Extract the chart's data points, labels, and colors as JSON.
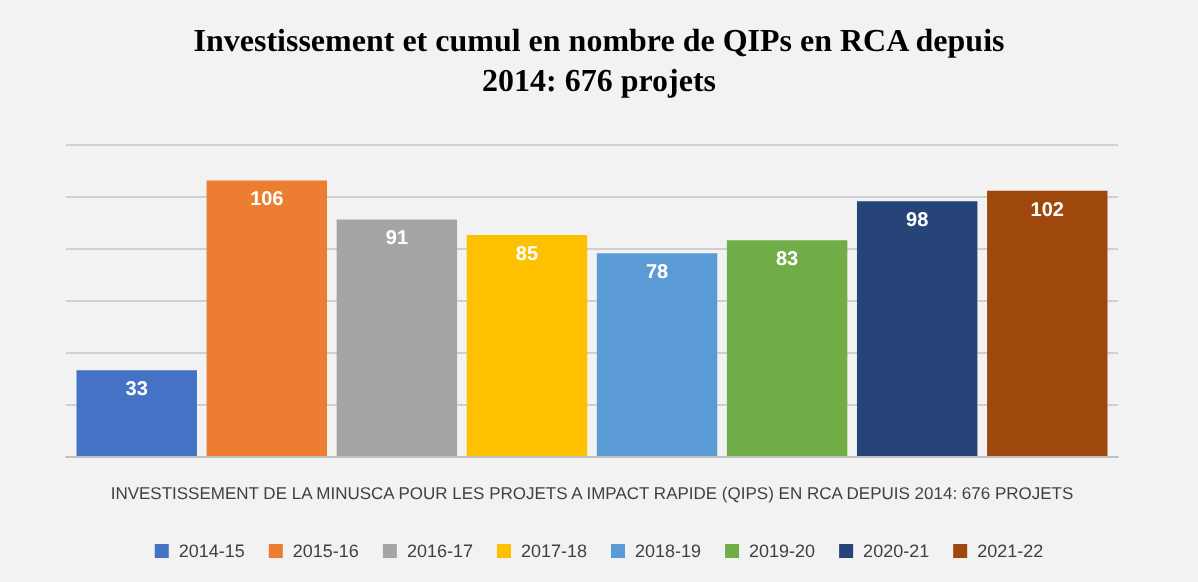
{
  "chart_data": {
    "type": "bar",
    "title": "Investissement et cumul en nombre de QIPs en RCA depuis\n2014: 676 projets",
    "xlabel": "INVESTISSEMENT DE LA MINUSCA POUR LES PROJETS A IMPACT RAPIDE (QIPS) EN RCA DEPUIS 2014: 676 PROJETS",
    "categories": [
      null
    ],
    "series": [
      {
        "name": "2014-15",
        "color": "#4472c4",
        "values": [
          33
        ]
      },
      {
        "name": "2015-16",
        "color": "#ed7d31",
        "values": [
          106
        ]
      },
      {
        "name": "2016-17",
        "color": "#a5a5a5",
        "values": [
          91
        ]
      },
      {
        "name": "2017-18",
        "color": "#ffc000",
        "values": [
          85
        ]
      },
      {
        "name": "2018-19",
        "color": "#5b9bd5",
        "values": [
          78
        ]
      },
      {
        "name": "2019-20",
        "color": "#70ad47",
        "values": [
          83
        ]
      },
      {
        "name": "2020-21",
        "color": "#264478",
        "values": [
          98
        ]
      },
      {
        "name": "2021-22",
        "color": "#9e480e",
        "values": [
          102
        ]
      }
    ],
    "ylim": [
      0,
      120
    ],
    "yticks": [
      {
        "value": 0,
        "label": null
      },
      {
        "value": 20,
        "label": null
      },
      {
        "value": 40,
        "label": null
      },
      {
        "value": 60,
        "label": null
      },
      {
        "value": 80,
        "label": null
      },
      {
        "value": 100,
        "label": null
      },
      {
        "value": 120,
        "label": null
      }
    ],
    "grid": "y",
    "legend": "bottom",
    "data_labels": true
  }
}
